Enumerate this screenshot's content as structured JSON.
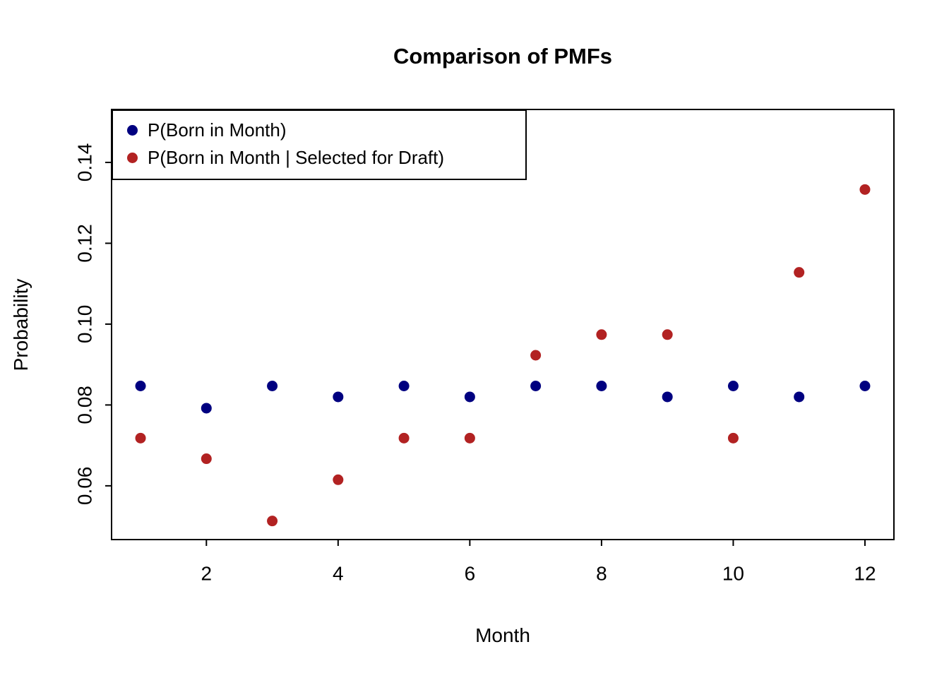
{
  "chart_data": {
    "type": "scatter",
    "title": "Comparison of PMFs",
    "xlabel": "Month",
    "ylabel": "Probability",
    "x": [
      1,
      2,
      3,
      4,
      5,
      6,
      7,
      8,
      9,
      10,
      11,
      12
    ],
    "series": [
      {
        "name": "P(Born in Month)",
        "color": "#000080",
        "values": [
          0.0847,
          0.0792,
          0.0847,
          0.082,
          0.0847,
          0.082,
          0.0847,
          0.0847,
          0.082,
          0.0847,
          0.082,
          0.0847
        ]
      },
      {
        "name": "P(Born in Month | Selected for Draft)",
        "color": "#B22222",
        "values": [
          0.0718,
          0.0667,
          0.0513,
          0.0615,
          0.0718,
          0.0718,
          0.0923,
          0.0974,
          0.0974,
          0.0718,
          0.1128,
          0.1333
        ]
      }
    ],
    "xlim": [
      0.56,
      12.44
    ],
    "ylim": [
      0.0467,
      0.1531
    ],
    "xticks": [
      2,
      4,
      6,
      8,
      10,
      12
    ],
    "xtick_labels": [
      "2",
      "4",
      "6",
      "8",
      "10",
      "12"
    ],
    "yticks": [
      0.06,
      0.08,
      0.1,
      0.12,
      0.14
    ],
    "ytick_labels": [
      "0.06",
      "0.08",
      "0.10",
      "0.12",
      "0.14"
    ],
    "grid": false,
    "legend_position": "topleft",
    "point_radius": 7.5,
    "axis_color": "#000000",
    "background": "#ffffff"
  }
}
